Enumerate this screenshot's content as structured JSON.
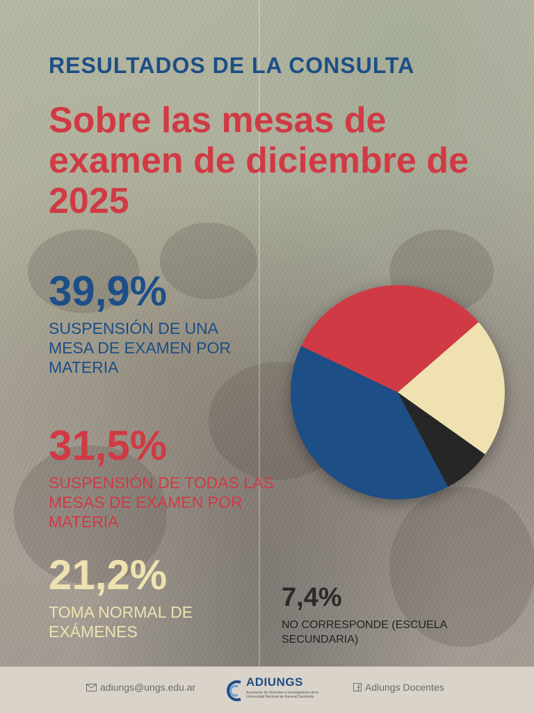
{
  "header": {
    "kicker": "RESULTADOS DE LA CONSULTA",
    "title": "Sobre las mesas de examen de diciembre de 2025"
  },
  "chart_data": {
    "type": "pie",
    "title": "",
    "slices": [
      {
        "label": "SUSPENSIÓN DE UNA MESA DE EXAMEN POR MATERIA",
        "value": 39.9,
        "display": "39,9%",
        "color": "#1d4e86"
      },
      {
        "label": "SUSPENSIÓN DE TODAS LAS MESAS DE EXAMEN POR MATERIA",
        "value": 31.5,
        "display": "31,5%",
        "color": "#d03a44"
      },
      {
        "label": "TOMA NORMAL DE EXÁMENES",
        "value": 21.2,
        "display": "21,2%",
        "color": "#efe2b0"
      },
      {
        "label": "NO CORRESPONDE (ESCUELA SECUNDARIA)",
        "value": 7.4,
        "display": "7,4%",
        "color": "#262626"
      }
    ],
    "start_angle_deg": 62
  },
  "footer": {
    "email": "adiungs@ungs.edu.ar",
    "logo_name": "ADIUNGS",
    "logo_tagline": "Asociación de Docentes e Investigadores de la Universidad Nacional de General Sarmiento",
    "social": "Adiungs Docentes",
    "email_icon": "envelope-icon",
    "social_icon": "facebook-icon"
  }
}
